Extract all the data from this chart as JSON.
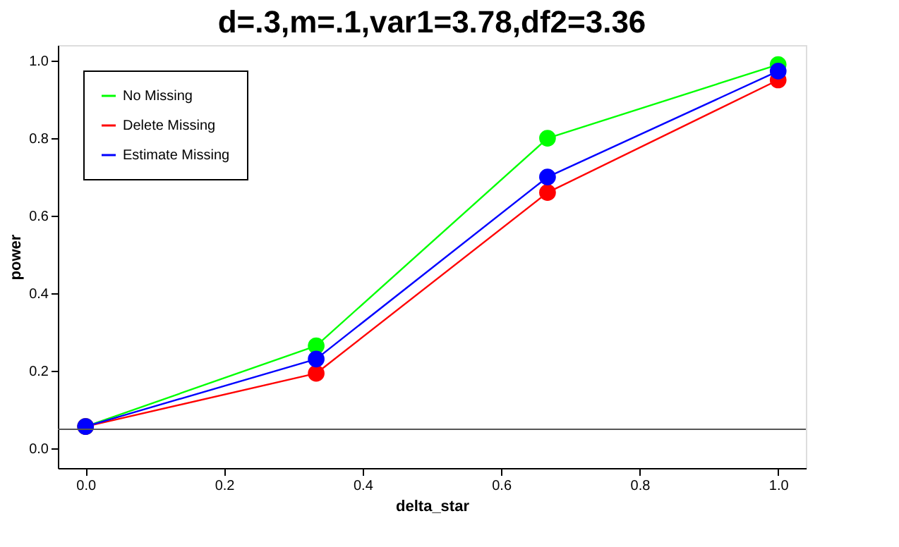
{
  "chart_data": {
    "type": "line",
    "title": "d=.3,m=.1,var1=3.78,df2=3.36",
    "xlabel": "delta_star",
    "ylabel": "power",
    "x": [
      0,
      0.333,
      0.667,
      1
    ],
    "series": [
      {
        "name": "No Missing",
        "color": "#00ff00",
        "values": [
          0.057,
          0.265,
          0.8,
          0.99
        ]
      },
      {
        "name": "Delete Missing",
        "color": "#ff0000",
        "values": [
          0.057,
          0.194,
          0.66,
          0.95
        ]
      },
      {
        "name": "Estimate Missing",
        "color": "#0000ff",
        "values": [
          0.057,
          0.231,
          0.7,
          0.973
        ]
      }
    ],
    "xlim": [
      -0.04,
      1.04
    ],
    "ylim": [
      -0.05,
      1.04
    ],
    "xticks": [
      {
        "value": 0,
        "label": "0.0"
      },
      0.2,
      0.4,
      0.6,
      0.8,
      {
        "value": 1,
        "label": "1.0"
      }
    ],
    "yticks": [
      {
        "value": 0,
        "label": "0.0"
      },
      0.2,
      0.4,
      0.6,
      0.8,
      {
        "value": 1,
        "label": "1.0"
      }
    ],
    "ref_lines": [
      {
        "axis": "y",
        "value": 0.05,
        "color": "#555555"
      }
    ],
    "marker": "circle",
    "line_style": "solid",
    "legend": "top left",
    "grid": false
  }
}
